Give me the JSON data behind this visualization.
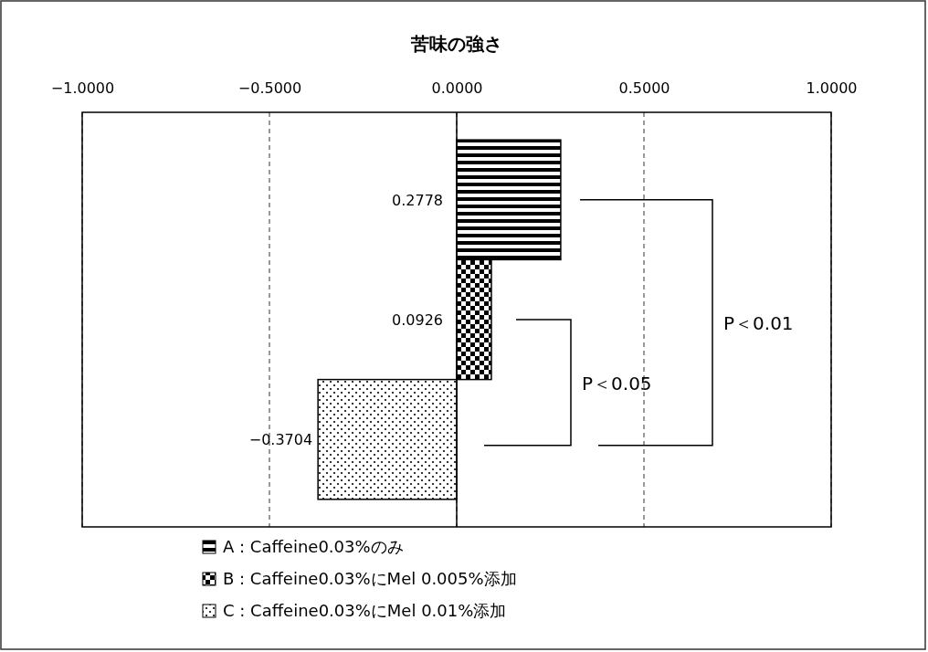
{
  "chart_data": {
    "type": "bar",
    "orientation": "horizontal",
    "stacked": true,
    "title": "苦味の強さ",
    "categories": [
      null,
      null,
      null
    ],
    "series": [
      {
        "name": "A : Caffeine0.03%のみ",
        "color": "#000000",
        "values": [
          0.2778,
          null,
          null
        ]
      },
      {
        "name": "B : Caffeine0.03%にMel 0.005%添加",
        "color": "#000000",
        "values": [
          null,
          0.0926,
          null
        ]
      },
      {
        "name": "C : Caffeine0.03%にMel 0.01%添加",
        "color": "#000000",
        "values": [
          null,
          null,
          -0.3704
        ]
      }
    ],
    "xlim": [
      -1,
      1
    ],
    "xticks": [
      {
        "value": -1,
        "label": "−1.0000"
      },
      {
        "value": -0.5,
        "label": "−0.5000"
      },
      {
        "value": 0,
        "label": "0.0000"
      },
      {
        "value": 0.5,
        "label": "0.5000"
      },
      {
        "value": 1,
        "label": "1.0000"
      }
    ],
    "grid": "x",
    "line_style": "dashed",
    "data_labels": true,
    "legend": "bottom",
    "annotations": [
      "P＜0.05",
      "P＜0.01"
    ]
  }
}
